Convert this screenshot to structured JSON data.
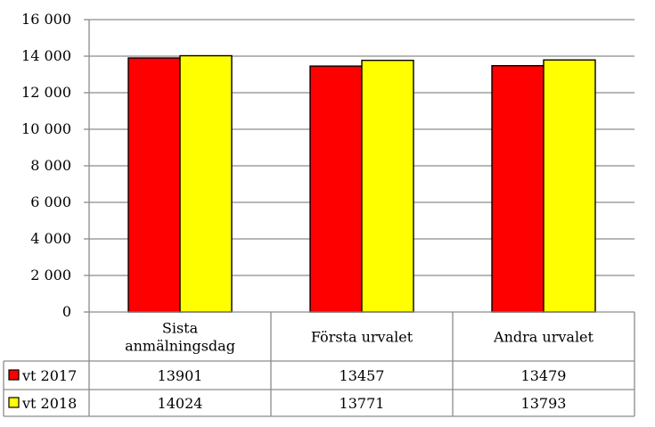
{
  "chart_data": {
    "type": "bar",
    "categories": [
      [
        "Sista",
        "anmälningsdag"
      ],
      [
        "Första urvalet"
      ],
      [
        "Andra urvalet"
      ]
    ],
    "series": [
      {
        "name": "vt 2017",
        "color": "#ff0000",
        "values": [
          13901,
          13457,
          13479
        ]
      },
      {
        "name": "vt 2018",
        "color": "#ffff00",
        "values": [
          14024,
          13771,
          13793
        ]
      }
    ],
    "ylim": [
      0,
      16000
    ],
    "yticks": [
      0,
      2000,
      4000,
      6000,
      8000,
      10000,
      12000,
      14000,
      16000
    ],
    "ytick_labels": [
      "0",
      "2 000",
      "4 000",
      "6 000",
      "8 000",
      "10 000",
      "12 000",
      "14 000",
      "16 000"
    ],
    "table_values": [
      [
        "13901",
        "13457",
        "13479"
      ],
      [
        "14024",
        "13771",
        "13793"
      ]
    ],
    "grid": true,
    "legend": "data-table"
  }
}
